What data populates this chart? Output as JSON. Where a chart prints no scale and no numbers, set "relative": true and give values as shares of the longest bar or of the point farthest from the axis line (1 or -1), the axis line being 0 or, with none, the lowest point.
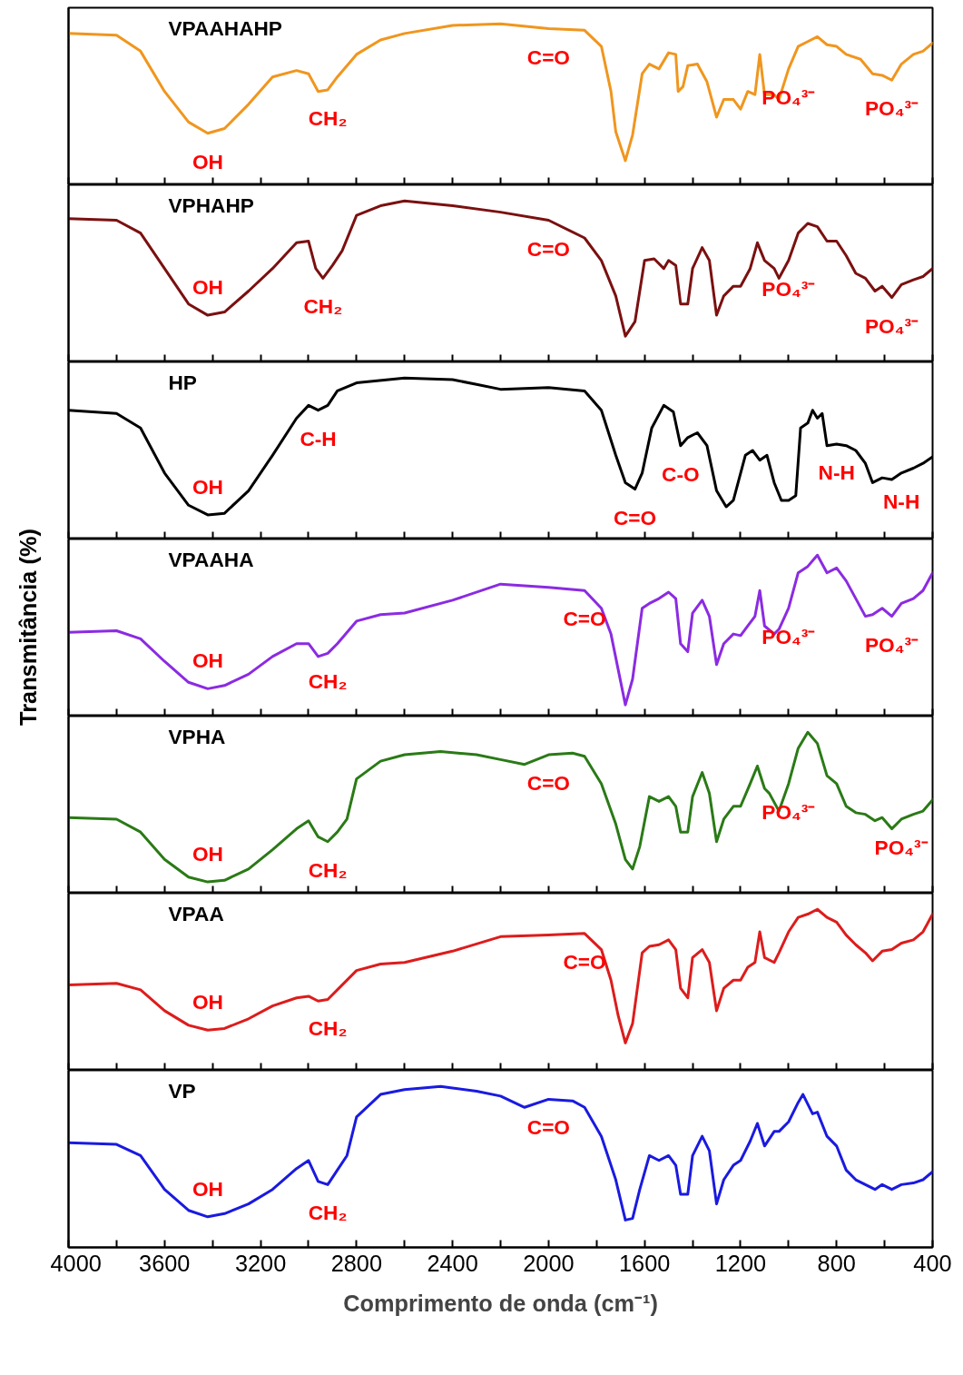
{
  "chart_data": [
    {
      "type": "line",
      "title": "VPAAHAHP",
      "relative": true,
      "color": "#f0961e",
      "xlim": [
        4000,
        400
      ],
      "xticks": [
        4000,
        {
          "value": 3800,
          "label": null
        },
        3600,
        {
          "value": 3400,
          "label": null
        },
        3200,
        {
          "value": 3000,
          "label": null
        },
        2800,
        {
          "value": 2600,
          "label": null
        },
        2400,
        {
          "value": 2200,
          "label": null
        },
        2000,
        {
          "value": 1800,
          "label": null
        },
        1600,
        {
          "value": 1400,
          "label": null
        },
        1200,
        {
          "value": 1000,
          "label": null
        },
        800,
        {
          "value": 600,
          "label": null
        },
        400
      ],
      "tick_labels": false,
      "x": [
        4000,
        3800,
        3700,
        3600,
        3500,
        3420,
        3350,
        3250,
        3150,
        3050,
        3000,
        2960,
        2920,
        2880,
        2800,
        2700,
        2600,
        2400,
        2200,
        2000,
        1850,
        1780,
        1740,
        1720,
        1680,
        1650,
        1610,
        1580,
        1540,
        1500,
        1470,
        1460,
        1440,
        1420,
        1380,
        1340,
        1300,
        1270,
        1230,
        1200,
        1170,
        1140,
        1120,
        1100,
        1060,
        1040,
        1000,
        960,
        920,
        880,
        840,
        800,
        760,
        700,
        650,
        610,
        570,
        530,
        480,
        440,
        400
      ],
      "values": [
        0.94,
        0.93,
        0.83,
        0.58,
        0.39,
        0.32,
        0.35,
        0.5,
        0.67,
        0.71,
        0.69,
        0.58,
        0.59,
        0.67,
        0.81,
        0.9,
        0.94,
        0.99,
        1.0,
        0.97,
        0.96,
        0.86,
        0.58,
        0.33,
        0.15,
        0.31,
        0.69,
        0.75,
        0.72,
        0.82,
        0.81,
        0.58,
        0.61,
        0.74,
        0.75,
        0.64,
        0.42,
        0.53,
        0.53,
        0.47,
        0.58,
        0.56,
        0.81,
        0.56,
        0.56,
        0.53,
        0.72,
        0.86,
        0.89,
        0.92,
        0.87,
        0.86,
        0.81,
        0.78,
        0.69,
        0.68,
        0.65,
        0.75,
        0.81,
        0.83,
        0.88
      ],
      "annotations": [
        {
          "text": "OH",
          "x": 3420,
          "y": 0.32
        },
        {
          "text": "CH₂",
          "x": 2920,
          "y": 0.59
        },
        {
          "text": "C=O",
          "x": 2000,
          "y": 0.97
        },
        {
          "text": "PO₄³⁻",
          "x": 1000,
          "y": 0.72
        },
        {
          "text": "PO₄³⁻",
          "x": 570,
          "y": 0.65
        }
      ]
    },
    {
      "type": "line",
      "title": "VPHAHP",
      "relative": true,
      "color": "#7b1010",
      "xlim": [
        4000,
        400
      ],
      "xticks": [
        4000,
        {
          "value": 3800,
          "label": null
        },
        3600,
        {
          "value": 3400,
          "label": null
        },
        3200,
        {
          "value": 3000,
          "label": null
        },
        2800,
        {
          "value": 2600,
          "label": null
        },
        2400,
        {
          "value": 2200,
          "label": null
        },
        2000,
        {
          "value": 1800,
          "label": null
        },
        1600,
        {
          "value": 1400,
          "label": null
        },
        1200,
        {
          "value": 1000,
          "label": null
        },
        800,
        {
          "value": 600,
          "label": null
        },
        400
      ],
      "tick_labels": false,
      "x": [
        4000,
        3800,
        3700,
        3600,
        3500,
        3420,
        3350,
        3250,
        3150,
        3050,
        3000,
        2970,
        2940,
        2900,
        2860,
        2800,
        2700,
        2600,
        2400,
        2200,
        2000,
        1850,
        1780,
        1720,
        1680,
        1640,
        1600,
        1560,
        1520,
        1500,
        1470,
        1450,
        1420,
        1400,
        1360,
        1330,
        1300,
        1270,
        1230,
        1200,
        1160,
        1130,
        1100,
        1060,
        1040,
        1000,
        960,
        920,
        880,
        840,
        800,
        760,
        720,
        680,
        640,
        610,
        570,
        530,
        480,
        440,
        400
      ],
      "values": [
        0.89,
        0.88,
        0.8,
        0.58,
        0.36,
        0.29,
        0.31,
        0.44,
        0.58,
        0.74,
        0.75,
        0.58,
        0.52,
        0.6,
        0.69,
        0.91,
        0.97,
        1.0,
        0.97,
        0.93,
        0.88,
        0.77,
        0.63,
        0.41,
        0.16,
        0.25,
        0.63,
        0.64,
        0.58,
        0.63,
        0.6,
        0.36,
        0.36,
        0.58,
        0.71,
        0.63,
        0.29,
        0.41,
        0.47,
        0.47,
        0.58,
        0.74,
        0.63,
        0.58,
        0.52,
        0.63,
        0.8,
        0.86,
        0.84,
        0.75,
        0.75,
        0.66,
        0.55,
        0.52,
        0.44,
        0.47,
        0.4,
        0.48,
        0.51,
        0.53,
        0.58
      ],
      "annotations": [
        {
          "text": "OH",
          "x": 3420,
          "y": 0.29
        },
        {
          "text": "CH₂",
          "x": 2940,
          "y": 0.52
        },
        {
          "text": "C=O",
          "x": 2000,
          "y": 0.88
        },
        {
          "text": "PO₄³⁻",
          "x": 1000,
          "y": 0.63
        },
        {
          "text": "PO₄³⁻",
          "x": 570,
          "y": 0.4
        }
      ]
    },
    {
      "type": "line",
      "title": "HP",
      "relative": true,
      "color": "#000000",
      "xlim": [
        4000,
        400
      ],
      "xticks": [
        4000,
        {
          "value": 3800,
          "label": null
        },
        3600,
        {
          "value": 3400,
          "label": null
        },
        3200,
        {
          "value": 3000,
          "label": null
        },
        2800,
        {
          "value": 2600,
          "label": null
        },
        2400,
        {
          "value": 2200,
          "label": null
        },
        2000,
        {
          "value": 1800,
          "label": null
        },
        1600,
        {
          "value": 1400,
          "label": null
        },
        1200,
        {
          "value": 1000,
          "label": null
        },
        800,
        {
          "value": 600,
          "label": null
        },
        400
      ],
      "tick_labels": false,
      "x": [
        4000,
        3800,
        3700,
        3600,
        3500,
        3420,
        3350,
        3250,
        3150,
        3050,
        3000,
        2960,
        2920,
        2880,
        2800,
        2600,
        2400,
        2300,
        2200,
        2000,
        1850,
        1780,
        1720,
        1680,
        1640,
        1610,
        1570,
        1520,
        1480,
        1450,
        1420,
        1380,
        1340,
        1300,
        1260,
        1230,
        1180,
        1150,
        1120,
        1090,
        1060,
        1030,
        1000,
        970,
        950,
        920,
        900,
        880,
        860,
        840,
        800,
        760,
        720,
        680,
        650,
        610,
        570,
        530,
        480,
        440,
        400
      ],
      "values": [
        0.8,
        0.78,
        0.69,
        0.41,
        0.21,
        0.15,
        0.16,
        0.3,
        0.52,
        0.75,
        0.83,
        0.8,
        0.83,
        0.92,
        0.97,
        1.0,
        0.99,
        0.96,
        0.93,
        0.94,
        0.92,
        0.8,
        0.52,
        0.35,
        0.31,
        0.41,
        0.69,
        0.83,
        0.79,
        0.58,
        0.63,
        0.66,
        0.58,
        0.3,
        0.2,
        0.24,
        0.52,
        0.55,
        0.49,
        0.52,
        0.35,
        0.24,
        0.24,
        0.27,
        0.69,
        0.72,
        0.8,
        0.75,
        0.78,
        0.58,
        0.59,
        0.58,
        0.55,
        0.47,
        0.35,
        0.38,
        0.37,
        0.41,
        0.44,
        0.47,
        0.51
      ],
      "annotations": [
        {
          "text": "OH",
          "x": 3420,
          "y": 0.15
        },
        {
          "text": "C-H",
          "x": 2960,
          "y": 0.8
        },
        {
          "text": "C=O",
          "x": 1640,
          "y": 0.31
        },
        {
          "text": "C-O",
          "x": 1450,
          "y": 0.58
        },
        {
          "text": "N-H",
          "x": 800,
          "y": 0.59
        },
        {
          "text": "N-H",
          "x": 530,
          "y": 0.41
        }
      ]
    },
    {
      "type": "line",
      "title": "VPAAHA",
      "relative": true,
      "color": "#8b2be2",
      "ylabel": "Transmitância (%)",
      "xlim": [
        4000,
        400
      ],
      "xticks": [
        4000,
        {
          "value": 3800,
          "label": null
        },
        3600,
        {
          "value": 3400,
          "label": null
        },
        3200,
        {
          "value": 3000,
          "label": null
        },
        2800,
        {
          "value": 2600,
          "label": null
        },
        2400,
        {
          "value": 2200,
          "label": null
        },
        2000,
        {
          "value": 1800,
          "label": null
        },
        1600,
        {
          "value": 1400,
          "label": null
        },
        1200,
        {
          "value": 1000,
          "label": null
        },
        800,
        {
          "value": 600,
          "label": null
        },
        400
      ],
      "tick_labels": false,
      "x": [
        4000,
        3800,
        3700,
        3600,
        3500,
        3420,
        3350,
        3250,
        3150,
        3050,
        3000,
        2960,
        2920,
        2880,
        2800,
        2700,
        2600,
        2400,
        2200,
        2000,
        1850,
        1780,
        1740,
        1710,
        1680,
        1650,
        1610,
        1580,
        1540,
        1500,
        1470,
        1450,
        1420,
        1400,
        1360,
        1330,
        1300,
        1270,
        1230,
        1200,
        1170,
        1140,
        1120,
        1100,
        1060,
        1040,
        1000,
        960,
        920,
        880,
        840,
        800,
        760,
        720,
        680,
        650,
        610,
        570,
        530,
        480,
        440,
        400
      ],
      "values": [
        0.52,
        0.53,
        0.48,
        0.34,
        0.21,
        0.17,
        0.19,
        0.26,
        0.37,
        0.45,
        0.45,
        0.37,
        0.39,
        0.45,
        0.59,
        0.63,
        0.64,
        0.72,
        0.82,
        0.8,
        0.78,
        0.67,
        0.51,
        0.29,
        0.07,
        0.23,
        0.67,
        0.7,
        0.73,
        0.77,
        0.73,
        0.45,
        0.4,
        0.64,
        0.72,
        0.62,
        0.32,
        0.45,
        0.51,
        0.5,
        0.56,
        0.62,
        0.78,
        0.56,
        0.51,
        0.54,
        0.67,
        0.89,
        0.93,
        1.0,
        0.89,
        0.92,
        0.84,
        0.73,
        0.62,
        0.63,
        0.67,
        0.62,
        0.7,
        0.73,
        0.78,
        0.89
      ],
      "annotations": [
        {
          "text": "OH",
          "x": 3420,
          "y": 0.17
        },
        {
          "text": "CH₂",
          "x": 2920,
          "y": 0.39
        },
        {
          "text": "C=O",
          "x": 1850,
          "y": 0.78
        },
        {
          "text": "PO₄³⁻",
          "x": 1000,
          "y": 0.67
        },
        {
          "text": "PO₄³⁻",
          "x": 570,
          "y": 0.62
        }
      ]
    },
    {
      "type": "line",
      "title": "VPHA",
      "relative": true,
      "color": "#2a7a16",
      "xlim": [
        4000,
        400
      ],
      "xticks": [
        4000,
        {
          "value": 3800,
          "label": null
        },
        3600,
        {
          "value": 3400,
          "label": null
        },
        3200,
        {
          "value": 3000,
          "label": null
        },
        2800,
        {
          "value": 2600,
          "label": null
        },
        2400,
        {
          "value": 2200,
          "label": null
        },
        2000,
        {
          "value": 1800,
          "label": null
        },
        1600,
        {
          "value": 1400,
          "label": null
        },
        1200,
        {
          "value": 1000,
          "label": null
        },
        800,
        {
          "value": 600,
          "label": null
        },
        400
      ],
      "tick_labels": false,
      "x": [
        4000,
        3800,
        3700,
        3600,
        3500,
        3420,
        3350,
        3250,
        3150,
        3050,
        3000,
        2960,
        2920,
        2880,
        2840,
        2800,
        2700,
        2600,
        2450,
        2300,
        2200,
        2100,
        2000,
        1900,
        1850,
        1780,
        1720,
        1680,
        1650,
        1620,
        1580,
        1540,
        1500,
        1470,
        1450,
        1420,
        1400,
        1360,
        1330,
        1300,
        1270,
        1230,
        1200,
        1160,
        1130,
        1100,
        1080,
        1040,
        1000,
        960,
        920,
        880,
        840,
        800,
        760,
        720,
        680,
        640,
        610,
        570,
        530,
        480,
        440,
        400
      ],
      "values": [
        0.47,
        0.46,
        0.38,
        0.21,
        0.1,
        0.07,
        0.08,
        0.15,
        0.27,
        0.4,
        0.45,
        0.35,
        0.32,
        0.38,
        0.46,
        0.71,
        0.82,
        0.86,
        0.88,
        0.86,
        0.83,
        0.8,
        0.86,
        0.87,
        0.85,
        0.68,
        0.43,
        0.21,
        0.15,
        0.29,
        0.6,
        0.57,
        0.6,
        0.54,
        0.38,
        0.38,
        0.6,
        0.75,
        0.62,
        0.32,
        0.46,
        0.54,
        0.54,
        0.68,
        0.79,
        0.65,
        0.62,
        0.51,
        0.68,
        0.9,
        1.0,
        0.93,
        0.73,
        0.68,
        0.54,
        0.5,
        0.49,
        0.45,
        0.47,
        0.4,
        0.46,
        0.49,
        0.51,
        0.58
      ],
      "annotations": [
        {
          "text": "OH",
          "x": 3420,
          "y": 0.07
        },
        {
          "text": "CH₂",
          "x": 2920,
          "y": 0.32
        },
        {
          "text": "C=O",
          "x": 2000,
          "y": 0.86
        },
        {
          "text": "PO₄³⁻",
          "x": 1000,
          "y": 0.68
        },
        {
          "text": "PO₄³⁻",
          "x": 530,
          "y": 0.46
        }
      ]
    },
    {
      "type": "line",
      "title": "VPAA",
      "relative": true,
      "color": "#dd1c1c",
      "xlim": [
        4000,
        400
      ],
      "xticks": [
        4000,
        {
          "value": 3800,
          "label": null
        },
        3600,
        {
          "value": 3400,
          "label": null
        },
        3200,
        {
          "value": 3000,
          "label": null
        },
        2800,
        {
          "value": 2600,
          "label": null
        },
        2400,
        {
          "value": 2200,
          "label": null
        },
        2000,
        {
          "value": 1800,
          "label": null
        },
        1600,
        {
          "value": 1400,
          "label": null
        },
        1200,
        {
          "value": 1000,
          "label": null
        },
        800,
        {
          "value": 600,
          "label": null
        },
        400
      ],
      "tick_labels": false,
      "x": [
        4000,
        3800,
        3700,
        3600,
        3500,
        3420,
        3350,
        3250,
        3150,
        3050,
        3000,
        2960,
        2920,
        2880,
        2800,
        2700,
        2600,
        2400,
        2200,
        2000,
        1850,
        1780,
        1740,
        1710,
        1680,
        1650,
        1610,
        1580,
        1540,
        1500,
        1470,
        1450,
        1420,
        1400,
        1360,
        1330,
        1300,
        1270,
        1230,
        1200,
        1170,
        1140,
        1120,
        1100,
        1060,
        1040,
        1000,
        960,
        920,
        880,
        840,
        800,
        760,
        720,
        680,
        650,
        610,
        570,
        530,
        480,
        440,
        400
      ],
      "values": [
        0.53,
        0.54,
        0.5,
        0.37,
        0.28,
        0.25,
        0.26,
        0.32,
        0.4,
        0.45,
        0.46,
        0.43,
        0.44,
        0.5,
        0.62,
        0.66,
        0.67,
        0.74,
        0.83,
        0.84,
        0.85,
        0.75,
        0.56,
        0.34,
        0.17,
        0.29,
        0.73,
        0.77,
        0.78,
        0.81,
        0.75,
        0.51,
        0.45,
        0.7,
        0.75,
        0.67,
        0.37,
        0.51,
        0.56,
        0.56,
        0.64,
        0.67,
        0.86,
        0.7,
        0.67,
        0.73,
        0.86,
        0.95,
        0.97,
        1.0,
        0.95,
        0.92,
        0.84,
        0.78,
        0.73,
        0.68,
        0.74,
        0.75,
        0.79,
        0.81,
        0.86,
        0.97
      ],
      "annotations": [
        {
          "text": "OH",
          "x": 3420,
          "y": 0.25
        },
        {
          "text": "CH₂",
          "x": 2920,
          "y": 0.44
        },
        {
          "text": "C=O",
          "x": 1850,
          "y": 0.85
        }
      ]
    },
    {
      "type": "line",
      "title": "VP",
      "relative": true,
      "color": "#1a1ae0",
      "xlabel": "Comprimento de onda (cm⁻¹)",
      "xlim": [
        4000,
        400
      ],
      "xticks": [
        4000,
        {
          "value": 3800,
          "label": null
        },
        3600,
        {
          "value": 3400,
          "label": null
        },
        3200,
        {
          "value": 3000,
          "label": null
        },
        2800,
        {
          "value": 2600,
          "label": null
        },
        2400,
        {
          "value": 2200,
          "label": null
        },
        2000,
        {
          "value": 1800,
          "label": null
        },
        1600,
        {
          "value": 1400,
          "label": null
        },
        1200,
        {
          "value": 1000,
          "label": null
        },
        800,
        {
          "value": 600,
          "label": null
        },
        400
      ],
      "tick_labels": "x",
      "x": [
        4000,
        3800,
        3700,
        3600,
        3500,
        3420,
        3350,
        3250,
        3150,
        3050,
        3000,
        2960,
        2920,
        2880,
        2840,
        2800,
        2700,
        2600,
        2450,
        2300,
        2200,
        2100,
        2000,
        1900,
        1850,
        1780,
        1720,
        1680,
        1650,
        1620,
        1580,
        1540,
        1500,
        1470,
        1450,
        1420,
        1400,
        1360,
        1330,
        1300,
        1270,
        1230,
        1200,
        1160,
        1130,
        1100,
        1060,
        1040,
        1000,
        960,
        940,
        900,
        880,
        840,
        800,
        760,
        720,
        680,
        640,
        610,
        570,
        530,
        480,
        440,
        400
      ],
      "values": [
        0.65,
        0.64,
        0.57,
        0.36,
        0.23,
        0.19,
        0.21,
        0.27,
        0.36,
        0.49,
        0.54,
        0.41,
        0.39,
        0.48,
        0.57,
        0.81,
        0.95,
        0.98,
        1.0,
        0.97,
        0.94,
        0.87,
        0.92,
        0.91,
        0.87,
        0.69,
        0.42,
        0.17,
        0.18,
        0.36,
        0.57,
        0.54,
        0.57,
        0.51,
        0.33,
        0.33,
        0.57,
        0.69,
        0.6,
        0.27,
        0.42,
        0.51,
        0.54,
        0.66,
        0.77,
        0.63,
        0.72,
        0.72,
        0.78,
        0.9,
        0.95,
        0.83,
        0.84,
        0.69,
        0.63,
        0.48,
        0.42,
        0.39,
        0.36,
        0.39,
        0.36,
        0.39,
        0.4,
        0.42,
        0.47
      ],
      "annotations": [
        {
          "text": "OH",
          "x": 3420,
          "y": 0.19
        },
        {
          "text": "CH₂",
          "x": 2920,
          "y": 0.39
        },
        {
          "text": "C=O",
          "x": 2000,
          "y": 0.92
        }
      ]
    }
  ]
}
